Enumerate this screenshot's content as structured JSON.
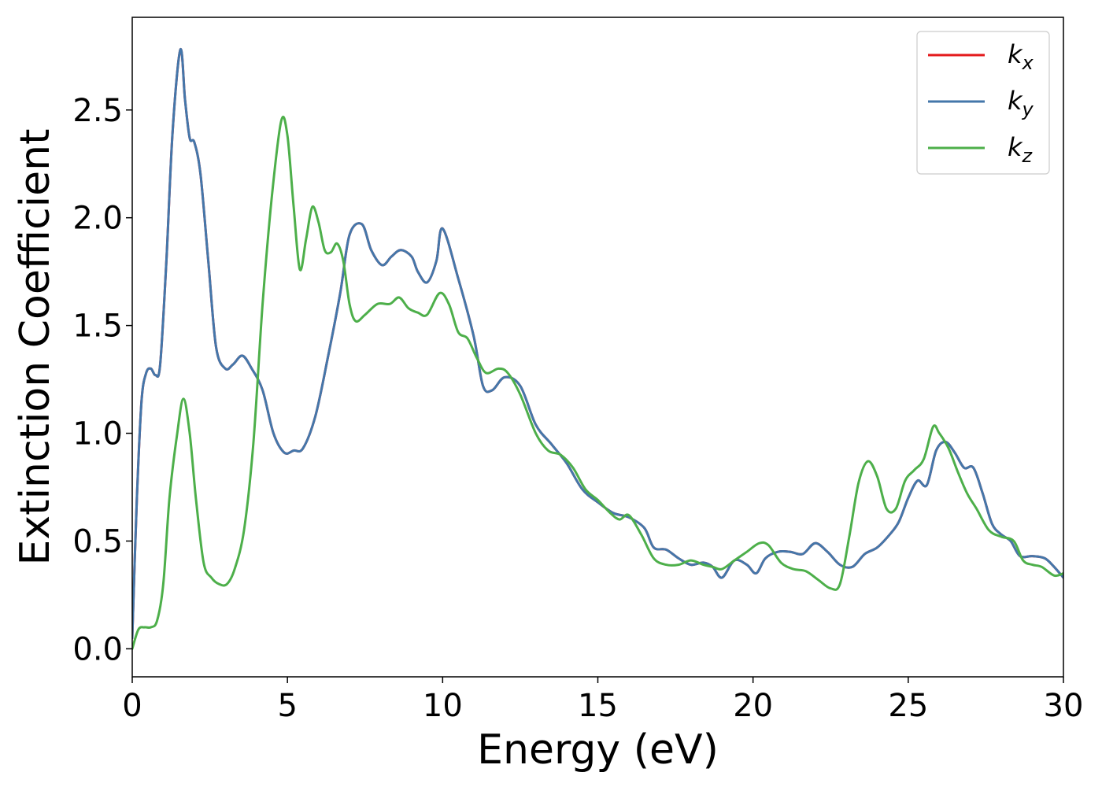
{
  "chart_data": {
    "type": "line",
    "xlabel": "Energy (eV)",
    "ylabel": "Extinction Coefficient",
    "xlim": [
      0,
      30
    ],
    "ylim": [
      -0.13,
      2.93
    ],
    "xticks": [
      0,
      5,
      10,
      15,
      20,
      25,
      30
    ],
    "xtick_labels": [
      "0",
      "5",
      "10",
      "15",
      "20",
      "25",
      "30"
    ],
    "yticks": [
      0.0,
      0.5,
      1.0,
      1.5,
      2.0,
      2.5
    ],
    "ytick_labels": [
      "0.0",
      "0.5",
      "1.0",
      "1.5",
      "2.0",
      "2.5"
    ],
    "grid": false,
    "legend_position": "top-right",
    "series": [
      {
        "name": "k",
        "subscript": "x",
        "color": "#e41a1c",
        "x": [
          0,
          0.15,
          0.3,
          0.45,
          0.6,
          0.75,
          0.9,
          1.1,
          1.3,
          1.55,
          1.7,
          1.85,
          2.0,
          2.2,
          2.45,
          2.7,
          3.0,
          3.25,
          3.55,
          3.85,
          4.2,
          4.55,
          4.9,
          5.2,
          5.5,
          5.9,
          6.3,
          6.7,
          7.0,
          7.4,
          7.7,
          8.05,
          8.35,
          8.65,
          9.0,
          9.2,
          9.5,
          9.8,
          10.0,
          10.5,
          11.0,
          11.3,
          11.6,
          12.0,
          12.5,
          13.0,
          13.5,
          14.0,
          14.5,
          15.0,
          15.5,
          16.0,
          16.5,
          16.8,
          17.2,
          17.6,
          18.0,
          18.4,
          18.7,
          19.0,
          19.4,
          19.8,
          20.1,
          20.4,
          20.8,
          21.2,
          21.6,
          22.0,
          22.4,
          22.8,
          23.2,
          23.6,
          24.0,
          24.4,
          24.7,
          25.0,
          25.3,
          25.6,
          25.9,
          26.2,
          26.5,
          26.8,
          27.1,
          27.4,
          27.7,
          28.0,
          28.3,
          28.6,
          29.0,
          29.4,
          29.7,
          30.0
        ],
        "y": [
          0.05,
          0.7,
          1.15,
          1.28,
          1.3,
          1.27,
          1.32,
          1.8,
          2.4,
          2.78,
          2.55,
          2.37,
          2.35,
          2.2,
          1.8,
          1.4,
          1.3,
          1.32,
          1.36,
          1.3,
          1.2,
          1.0,
          0.91,
          0.92,
          0.93,
          1.08,
          1.35,
          1.65,
          1.92,
          1.97,
          1.85,
          1.78,
          1.82,
          1.85,
          1.82,
          1.75,
          1.7,
          1.8,
          1.95,
          1.72,
          1.45,
          1.22,
          1.2,
          1.26,
          1.22,
          1.04,
          0.95,
          0.86,
          0.74,
          0.68,
          0.63,
          0.61,
          0.56,
          0.47,
          0.46,
          0.42,
          0.39,
          0.4,
          0.38,
          0.33,
          0.41,
          0.39,
          0.35,
          0.42,
          0.45,
          0.45,
          0.44,
          0.49,
          0.45,
          0.39,
          0.38,
          0.44,
          0.47,
          0.53,
          0.59,
          0.7,
          0.78,
          0.76,
          0.92,
          0.96,
          0.91,
          0.84,
          0.84,
          0.72,
          0.58,
          0.53,
          0.5,
          0.43,
          0.43,
          0.42,
          0.38,
          0.33
        ]
      },
      {
        "name": "k",
        "subscript": "y",
        "color": "#4477aa",
        "x": [
          0,
          0.15,
          0.3,
          0.45,
          0.6,
          0.75,
          0.9,
          1.1,
          1.3,
          1.55,
          1.7,
          1.85,
          2.0,
          2.2,
          2.45,
          2.7,
          3.0,
          3.25,
          3.55,
          3.85,
          4.2,
          4.55,
          4.9,
          5.2,
          5.5,
          5.9,
          6.3,
          6.7,
          7.0,
          7.4,
          7.7,
          8.05,
          8.35,
          8.65,
          9.0,
          9.2,
          9.5,
          9.8,
          10.0,
          10.5,
          11.0,
          11.3,
          11.6,
          12.0,
          12.5,
          13.0,
          13.5,
          14.0,
          14.5,
          15.0,
          15.5,
          16.0,
          16.5,
          16.8,
          17.2,
          17.6,
          18.0,
          18.4,
          18.7,
          19.0,
          19.4,
          19.8,
          20.1,
          20.4,
          20.8,
          21.2,
          21.6,
          22.0,
          22.4,
          22.8,
          23.2,
          23.6,
          24.0,
          24.4,
          24.7,
          25.0,
          25.3,
          25.6,
          25.9,
          26.2,
          26.5,
          26.8,
          27.1,
          27.4,
          27.7,
          28.0,
          28.3,
          28.6,
          29.0,
          29.4,
          29.7,
          30.0
        ],
        "y": [
          0.05,
          0.7,
          1.15,
          1.28,
          1.3,
          1.27,
          1.32,
          1.8,
          2.4,
          2.78,
          2.55,
          2.37,
          2.35,
          2.2,
          1.8,
          1.4,
          1.3,
          1.32,
          1.36,
          1.3,
          1.2,
          1.0,
          0.91,
          0.92,
          0.93,
          1.08,
          1.35,
          1.65,
          1.92,
          1.97,
          1.85,
          1.78,
          1.82,
          1.85,
          1.82,
          1.75,
          1.7,
          1.8,
          1.95,
          1.72,
          1.45,
          1.22,
          1.2,
          1.26,
          1.22,
          1.04,
          0.95,
          0.86,
          0.74,
          0.68,
          0.63,
          0.61,
          0.56,
          0.47,
          0.46,
          0.42,
          0.39,
          0.4,
          0.38,
          0.33,
          0.41,
          0.39,
          0.35,
          0.42,
          0.45,
          0.45,
          0.44,
          0.49,
          0.45,
          0.39,
          0.38,
          0.44,
          0.47,
          0.53,
          0.59,
          0.7,
          0.78,
          0.76,
          0.92,
          0.96,
          0.91,
          0.84,
          0.84,
          0.72,
          0.58,
          0.53,
          0.5,
          0.43,
          0.43,
          0.42,
          0.38,
          0.33
        ]
      },
      {
        "name": "k",
        "subscript": "z",
        "color": "#4daf4a",
        "x": [
          0,
          0.2,
          0.4,
          0.6,
          0.8,
          1.0,
          1.2,
          1.45,
          1.65,
          1.85,
          2.05,
          2.3,
          2.55,
          2.8,
          3.05,
          3.3,
          3.6,
          3.9,
          4.2,
          4.5,
          4.8,
          5.0,
          5.2,
          5.4,
          5.6,
          5.8,
          6.0,
          6.2,
          6.4,
          6.6,
          6.8,
          7.0,
          7.2,
          7.5,
          7.9,
          8.3,
          8.6,
          8.9,
          9.2,
          9.5,
          9.9,
          10.2,
          10.5,
          10.8,
          11.1,
          11.4,
          11.8,
          12.1,
          12.5,
          13.0,
          13.4,
          13.8,
          14.2,
          14.6,
          15.0,
          15.4,
          15.7,
          16.0,
          16.4,
          16.8,
          17.2,
          17.6,
          18.0,
          18.4,
          18.7,
          19.0,
          19.4,
          19.8,
          20.2,
          20.5,
          20.9,
          21.3,
          21.7,
          22.1,
          22.5,
          22.8,
          23.1,
          23.4,
          23.7,
          24.0,
          24.3,
          24.6,
          24.9,
          25.2,
          25.5,
          25.8,
          26.0,
          26.3,
          26.6,
          26.9,
          27.2,
          27.6,
          28.0,
          28.4,
          28.7,
          29.0,
          29.3,
          29.7,
          30.0
        ],
        "y": [
          0.0,
          0.09,
          0.1,
          0.1,
          0.13,
          0.3,
          0.7,
          1.0,
          1.16,
          1.0,
          0.7,
          0.4,
          0.33,
          0.3,
          0.3,
          0.37,
          0.55,
          0.95,
          1.6,
          2.1,
          2.45,
          2.38,
          2.05,
          1.76,
          1.9,
          2.05,
          1.98,
          1.85,
          1.84,
          1.88,
          1.8,
          1.6,
          1.52,
          1.55,
          1.6,
          1.6,
          1.63,
          1.58,
          1.56,
          1.55,
          1.65,
          1.6,
          1.47,
          1.44,
          1.35,
          1.28,
          1.3,
          1.28,
          1.18,
          1.0,
          0.92,
          0.9,
          0.84,
          0.74,
          0.69,
          0.63,
          0.6,
          0.62,
          0.53,
          0.42,
          0.39,
          0.39,
          0.41,
          0.39,
          0.38,
          0.37,
          0.41,
          0.45,
          0.49,
          0.48,
          0.4,
          0.37,
          0.36,
          0.32,
          0.28,
          0.3,
          0.52,
          0.77,
          0.87,
          0.8,
          0.65,
          0.65,
          0.78,
          0.83,
          0.88,
          1.03,
          1.0,
          0.93,
          0.82,
          0.72,
          0.65,
          0.55,
          0.52,
          0.5,
          0.41,
          0.39,
          0.38,
          0.34,
          0.35
        ]
      }
    ]
  }
}
